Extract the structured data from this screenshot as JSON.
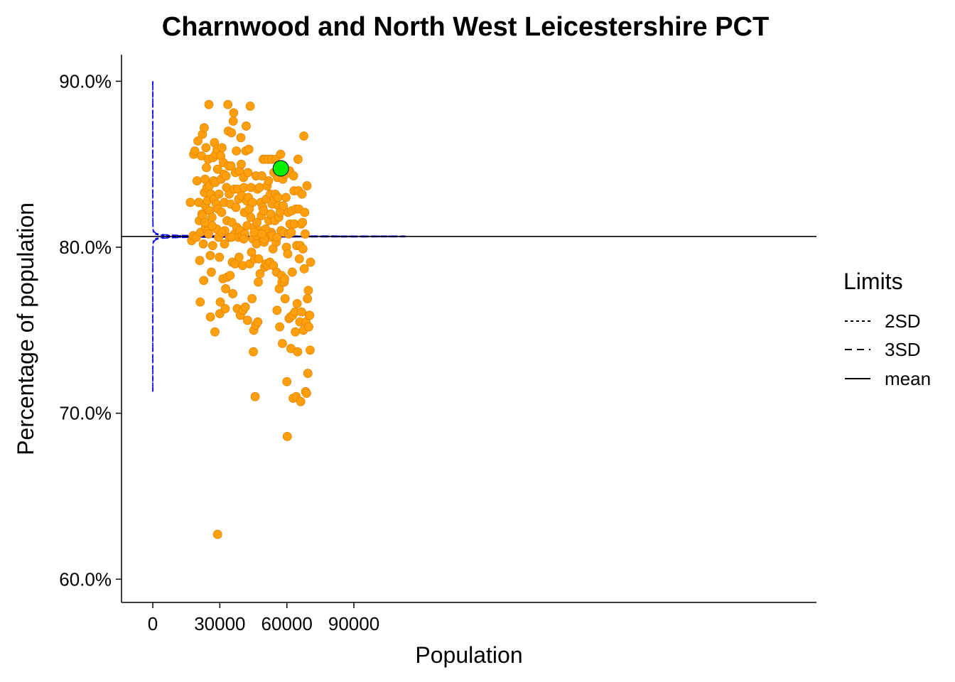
{
  "chart_data": {
    "type": "scatter",
    "title": "Charnwood and North West Leicestershire PCT",
    "xlabel": "Population",
    "ylabel": "Percentage of population",
    "xlim": [
      -14000,
      297000
    ],
    "ylim": [
      58.6,
      91.6
    ],
    "x_ticks": [
      0,
      30000,
      60000,
      90000
    ],
    "x_tick_labels": [
      "0",
      "30000",
      "60000",
      "90000"
    ],
    "y_ticks": [
      60,
      70,
      80,
      90
    ],
    "y_tick_labels": [
      "60.0%",
      "70.0%",
      "80.0%",
      "90.0%"
    ],
    "grid": false,
    "mean": 80.65,
    "limits": {
      "x_max": 113000,
      "two_sd_k": 4.9,
      "three_sd_k": 7.35
    },
    "legend": {
      "title": "Limits",
      "placement": "right",
      "entries": [
        {
          "label": "2SD",
          "dash": "short"
        },
        {
          "label": "3SD",
          "dash": "long"
        },
        {
          "label": "mean",
          "dash": "solid"
        }
      ]
    },
    "colors": {
      "points": "#FF9F0E",
      "points_stroke": "#E08600",
      "highlight": "#00F000",
      "limits": "#0000FF",
      "mean": "#000000"
    },
    "highlight": {
      "x": 57300,
      "y": 84.75
    },
    "points": [
      [
        16800,
        82.7
      ],
      [
        17400,
        80.4
      ],
      [
        18100,
        80.7
      ],
      [
        18300,
        85.6
      ],
      [
        18800,
        85.8
      ],
      [
        19500,
        80.6
      ],
      [
        19800,
        84.0
      ],
      [
        20200,
        86.4
      ],
      [
        20600,
        82.7
      ],
      [
        20800,
        81.6
      ],
      [
        21000,
        79.2
      ],
      [
        21200,
        76.7
      ],
      [
        21400,
        80.9
      ],
      [
        21800,
        85.5
      ],
      [
        22000,
        82.0
      ],
      [
        22200,
        86.8
      ],
      [
        22300,
        81.9
      ],
      [
        22600,
        80.2
      ],
      [
        22800,
        78.0
      ],
      [
        23000,
        87.2
      ],
      [
        23100,
        83.3
      ],
      [
        23400,
        84.1
      ],
      [
        23500,
        82.5
      ],
      [
        23600,
        81.2
      ],
      [
        23800,
        86.0
      ],
      [
        24000,
        84.8
      ],
      [
        24200,
        83.6
      ],
      [
        24400,
        82.8
      ],
      [
        24600,
        81.0
      ],
      [
        24800,
        85.3
      ],
      [
        25000,
        80.8
      ],
      [
        25100,
        88.6
      ],
      [
        25300,
        83.7
      ],
      [
        25500,
        82.2
      ],
      [
        25700,
        79.5
      ],
      [
        25800,
        75.8
      ],
      [
        26000,
        83.2
      ],
      [
        26200,
        78.5
      ],
      [
        26500,
        81.8
      ],
      [
        26800,
        80.1
      ],
      [
        27000,
        85.4
      ],
      [
        27200,
        84.0
      ],
      [
        27400,
        82.9
      ],
      [
        27600,
        86.3
      ],
      [
        27800,
        74.9
      ],
      [
        28000,
        83.9
      ],
      [
        28200,
        85.6
      ],
      [
        28400,
        82.6
      ],
      [
        28600,
        81.1
      ],
      [
        28800,
        85.9
      ],
      [
        29000,
        84.7
      ],
      [
        29200,
        82.3
      ],
      [
        29400,
        80.6
      ],
      [
        29600,
        83.2
      ],
      [
        29800,
        79.4
      ],
      [
        30000,
        76.0
      ],
      [
        30200,
        76.7
      ],
      [
        30400,
        85.5
      ],
      [
        30600,
        84.1
      ],
      [
        30800,
        82.1
      ],
      [
        31000,
        86.0
      ],
      [
        31200,
        80.9
      ],
      [
        31400,
        78.1
      ],
      [
        31600,
        85.1
      ],
      [
        31800,
        84.4
      ],
      [
        32000,
        82.7
      ],
      [
        32200,
        81.0
      ],
      [
        32400,
        76.3
      ],
      [
        32600,
        77.5
      ],
      [
        32800,
        84.3
      ],
      [
        33000,
        83.6
      ],
      [
        33200,
        81.6
      ],
      [
        33400,
        78.2
      ],
      [
        33600,
        88.6
      ],
      [
        33800,
        87.0
      ],
      [
        34000,
        84.9
      ],
      [
        34200,
        83.2
      ],
      [
        34400,
        80.6
      ],
      [
        34600,
        78.3
      ],
      [
        34800,
        82.6
      ],
      [
        35000,
        84.9
      ],
      [
        35200,
        86.9
      ],
      [
        35400,
        81.5
      ],
      [
        35600,
        79.1
      ],
      [
        35800,
        77.2
      ],
      [
        36000,
        87.6
      ],
      [
        36200,
        88.1
      ],
      [
        36400,
        83.5
      ],
      [
        36600,
        80.8
      ],
      [
        36800,
        79.0
      ],
      [
        37000,
        84.5
      ],
      [
        37200,
        82.4
      ],
      [
        37400,
        85.8
      ],
      [
        37600,
        81.2
      ],
      [
        37800,
        76.3
      ],
      [
        38000,
        83.5
      ],
      [
        38200,
        80.6
      ],
      [
        38400,
        82.9
      ],
      [
        38600,
        79.4
      ],
      [
        38800,
        84.6
      ],
      [
        39000,
        81.0
      ],
      [
        39200,
        75.9
      ],
      [
        39400,
        86.6
      ],
      [
        39600,
        85.0
      ],
      [
        39800,
        83.1
      ],
      [
        40000,
        80.7
      ],
      [
        40200,
        78.9
      ],
      [
        40400,
        76.2
      ],
      [
        40600,
        84.2
      ],
      [
        40800,
        83.6
      ],
      [
        41000,
        82.1
      ],
      [
        41200,
        80.8
      ],
      [
        41400,
        76.4
      ],
      [
        41600,
        85.8
      ],
      [
        41800,
        87.3
      ],
      [
        42000,
        82.8
      ],
      [
        42200,
        81.3
      ],
      [
        42400,
        75.6
      ],
      [
        42600,
        84.5
      ],
      [
        42800,
        83.0
      ],
      [
        43000,
        85.9
      ],
      [
        43200,
        82.3
      ],
      [
        43400,
        79.0
      ],
      [
        43600,
        88.5
      ],
      [
        43800,
        81.8
      ],
      [
        44000,
        83.6
      ],
      [
        44200,
        79.7
      ],
      [
        44400,
        76.9
      ],
      [
        44600,
        82.7
      ],
      [
        44800,
        80.5
      ],
      [
        45000,
        73.7
      ],
      [
        45200,
        75.0
      ],
      [
        45400,
        81.2
      ],
      [
        45600,
        79.3
      ],
      [
        45800,
        71.0
      ],
      [
        46000,
        75.3
      ],
      [
        46200,
        84.3
      ],
      [
        46400,
        80.2
      ],
      [
        46600,
        81.5
      ],
      [
        46800,
        83.5
      ],
      [
        47000,
        75.5
      ],
      [
        47200,
        77.9
      ],
      [
        47400,
        79.3
      ],
      [
        47600,
        81.0
      ],
      [
        47800,
        83.6
      ],
      [
        48000,
        78.4
      ],
      [
        48200,
        80.8
      ],
      [
        48400,
        82.7
      ],
      [
        48600,
        81.9
      ],
      [
        48800,
        84.3
      ],
      [
        49000,
        80.5
      ],
      [
        49200,
        82.4
      ],
      [
        49400,
        85.3
      ],
      [
        49600,
        82.2
      ],
      [
        49800,
        80.3
      ],
      [
        50000,
        78.8
      ],
      [
        50200,
        85.3
      ],
      [
        50400,
        81.0
      ],
      [
        50600,
        79.0
      ],
      [
        50800,
        82.9
      ],
      [
        51000,
        80.6
      ],
      [
        51200,
        83.7
      ],
      [
        51400,
        78.9
      ],
      [
        51600,
        85.3
      ],
      [
        51800,
        84.0
      ],
      [
        52000,
        81.6
      ],
      [
        52200,
        80.6
      ],
      [
        52400,
        79.1
      ],
      [
        52600,
        83.2
      ],
      [
        52800,
        82.0
      ],
      [
        53000,
        80.9
      ],
      [
        53200,
        85.3
      ],
      [
        53400,
        82.6
      ],
      [
        53600,
        80.7
      ],
      [
        53800,
        79.9
      ],
      [
        54000,
        78.9
      ],
      [
        54200,
        84.5
      ],
      [
        54400,
        82.9
      ],
      [
        54600,
        81.6
      ],
      [
        54800,
        83.2
      ],
      [
        55000,
        85.3
      ],
      [
        55200,
        80.3
      ],
      [
        55400,
        78.5
      ],
      [
        55600,
        76.2
      ],
      [
        55800,
        84.2
      ],
      [
        56000,
        83.0
      ],
      [
        56200,
        82.5
      ],
      [
        56400,
        81.8
      ],
      [
        56600,
        77.5
      ],
      [
        56800,
        75.2
      ],
      [
        57000,
        82.1
      ],
      [
        57200,
        85.6
      ],
      [
        57400,
        81.0
      ],
      [
        57600,
        78.3
      ],
      [
        57800,
        77.9
      ],
      [
        58000,
        74.2
      ],
      [
        58200,
        84.1
      ],
      [
        58400,
        82.5
      ],
      [
        58600,
        80.9
      ],
      [
        58800,
        77.9
      ],
      [
        59000,
        78.1
      ],
      [
        59200,
        76.9
      ],
      [
        59400,
        84.4
      ],
      [
        59600,
        83.0
      ],
      [
        59800,
        80.0
      ],
      [
        60000,
        71.9
      ],
      [
        60200,
        68.6
      ],
      [
        60400,
        79.6
      ],
      [
        60600,
        82.1
      ],
      [
        60800,
        80.8
      ],
      [
        61000,
        75.7
      ],
      [
        61200,
        84.6
      ],
      [
        61400,
        81.4
      ],
      [
        61600,
        75.8
      ],
      [
        61800,
        73.9
      ],
      [
        62000,
        80.9
      ],
      [
        62200,
        82.2
      ],
      [
        62400,
        78.5
      ],
      [
        62600,
        75.9
      ],
      [
        62800,
        70.9
      ],
      [
        63000,
        84.3
      ],
      [
        63200,
        83.4
      ],
      [
        63400,
        81.4
      ],
      [
        63600,
        76.1
      ],
      [
        63800,
        74.9
      ],
      [
        64000,
        82.3
      ],
      [
        64200,
        71.0
      ],
      [
        64400,
        80.1
      ],
      [
        64600,
        76.6
      ],
      [
        64800,
        73.7
      ],
      [
        65000,
        85.3
      ],
      [
        65200,
        83.4
      ],
      [
        65400,
        82.3
      ],
      [
        65600,
        79.3
      ],
      [
        65800,
        75.5
      ],
      [
        66000,
        80.1
      ],
      [
        66200,
        70.7
      ],
      [
        66400,
        81.4
      ],
      [
        66600,
        76.1
      ],
      [
        66800,
        83.2
      ],
      [
        67000,
        81.5
      ],
      [
        67200,
        79.9
      ],
      [
        67400,
        75.0
      ],
      [
        67600,
        86.7
      ],
      [
        67800,
        78.7
      ],
      [
        68000,
        82.1
      ],
      [
        68200,
        80.8
      ],
      [
        68400,
        71.3
      ],
      [
        68600,
        75.5
      ],
      [
        68800,
        71.2
      ],
      [
        69000,
        83.7
      ],
      [
        69200,
        76.9
      ],
      [
        69400,
        72.4
      ],
      [
        69600,
        77.4
      ],
      [
        69800,
        75.2
      ],
      [
        70000,
        75.9
      ],
      [
        70200,
        75.9
      ],
      [
        70400,
        73.8
      ],
      [
        70600,
        79.1
      ],
      [
        29000,
        62.7
      ],
      [
        55600,
        80.6
      ],
      [
        46500,
        80.7
      ],
      [
        45500,
        80.9
      ],
      [
        49800,
        80.5
      ],
      [
        50500,
        81.1
      ],
      [
        48800,
        80.8
      ],
      [
        35200,
        80.6
      ],
      [
        30800,
        80.9
      ],
      [
        26500,
        81.3
      ],
      [
        23300,
        81.5
      ],
      [
        32100,
        80.2
      ],
      [
        40700,
        80.5
      ]
    ]
  }
}
